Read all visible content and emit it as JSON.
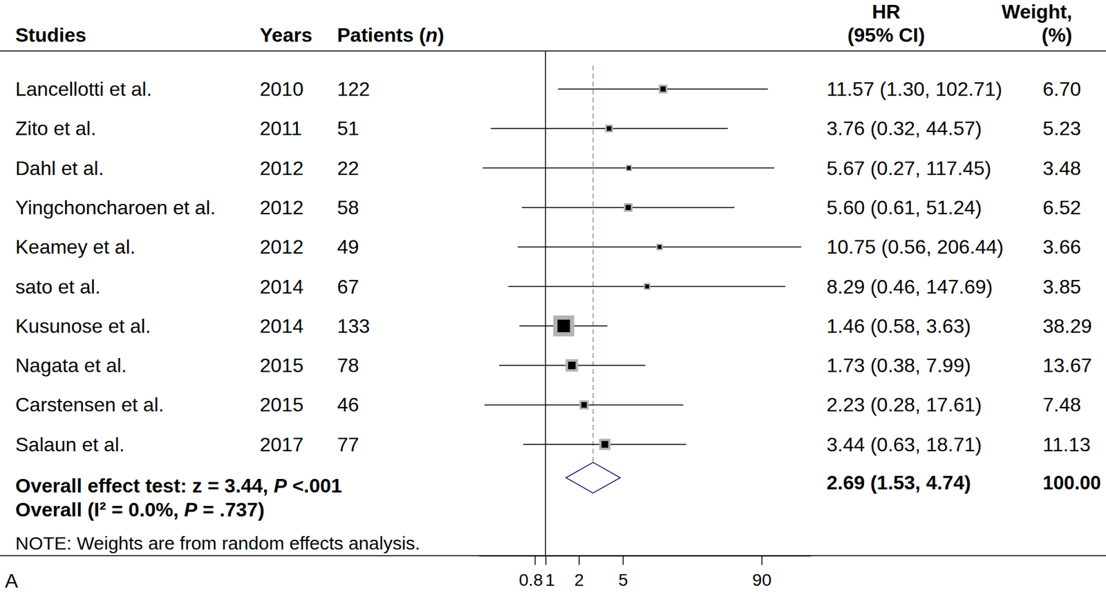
{
  "chart_data": {
    "type": "forest",
    "log": "x",
    "xlim": [
      0.25,
      250
    ],
    "xticks": [
      0.8,
      1,
      2,
      5,
      90
    ],
    "null_line": 1,
    "panel_label": "A",
    "study_header": "Studies",
    "year_header": "Years",
    "patients_header": [
      "Patients (",
      {
        "italic": "n"
      },
      ")"
    ],
    "hr_header": [
      "HR",
      "(95% CI)"
    ],
    "weight_header": [
      "Weight,",
      "(%)"
    ],
    "studies": [
      "Lancellotti et al.",
      "Zito et al.",
      "Dahl et al.",
      "Yingchoncharoen et al.",
      "Keamey et al.",
      "sato et al.",
      "Kusunose et al.",
      "Nagata et al.",
      "Carstensen et al.",
      "Salaun et al."
    ],
    "years": [
      2010,
      2011,
      2012,
      2012,
      2012,
      2014,
      2014,
      2015,
      2015,
      2017
    ],
    "patients": [
      122,
      51,
      22,
      58,
      49,
      67,
      133,
      78,
      46,
      77
    ],
    "hr": [
      11.57,
      3.76,
      5.67,
      5.6,
      10.75,
      8.29,
      1.46,
      1.73,
      2.23,
      3.44
    ],
    "lower": [
      1.3,
      0.32,
      0.27,
      0.61,
      0.56,
      0.46,
      0.58,
      0.38,
      0.28,
      0.63
    ],
    "upper": [
      102.71,
      44.57,
      117.45,
      51.24,
      206.44,
      147.69,
      3.63,
      7.99,
      17.61,
      18.71
    ],
    "hr_labels": [
      "11.57 (1.30, 102.71)",
      "3.76 (0.32, 44.57)",
      "5.67 (0.27, 117.45)",
      "5.60 (0.61, 51.24)",
      "10.75 (0.56, 206.44)",
      "8.29 (0.46, 147.69)",
      "1.46 (0.58, 3.63)",
      "1.73 (0.38, 7.99)",
      "2.23 (0.28, 17.61)",
      "3.44 (0.63, 18.71)"
    ],
    "weights": [
      6.7,
      5.23,
      3.48,
      6.52,
      3.66,
      3.85,
      38.29,
      13.67,
      7.48,
      11.13
    ],
    "weight_labels": [
      "6.70",
      "5.23",
      "3.48",
      "6.52",
      "3.66",
      "3.85",
      "38.29",
      "13.67",
      "7.48",
      "11.13"
    ],
    "overall": {
      "hr": 2.69,
      "lower": 1.53,
      "upper": 4.74,
      "label": "2.69 (1.53, 4.74)",
      "weight_label": "100.00"
    },
    "overall_test": [
      "Overall effect test: z = 3.44, ",
      {
        "italic": "P"
      },
      " <.001"
    ],
    "heterogeneity": [
      "Overall (I² = 0.0%, ",
      {
        "italic": "P"
      },
      " = .737)"
    ],
    "note": "NOTE: Weights are from random effects analysis."
  }
}
